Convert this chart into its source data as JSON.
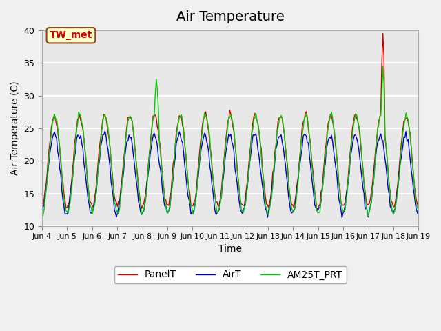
{
  "title": "Air Temperature",
  "xlabel": "Time",
  "ylabel": "Air Temperature (C)",
  "ylim": [
    10,
    40
  ],
  "yticks": [
    10,
    15,
    20,
    25,
    30,
    35,
    40
  ],
  "x_tick_labels": [
    "Jun 4",
    "Jun 5",
    "Jun 6",
    "Jun 7",
    "Jun 8",
    "Jun 9",
    "Jun 10",
    "Jun 11",
    "Jun 12",
    "Jun 13",
    "Jun 14",
    "Jun 15",
    "Jun 16",
    "Jun 17",
    "Jun 18",
    "Jun 19"
  ],
  "annotation_text": "TW_met",
  "annotation_bg": "#ffffcc",
  "annotation_border": "#8b4513",
  "annotation_text_color": "#cc0000",
  "panel_color_hex": "#cc0000",
  "air_color_hex": "#0000cc",
  "am25t_color_hex": "#00cc00",
  "legend_labels": [
    "PanelT",
    "AirT",
    "AM25T_PRT"
  ],
  "bg_color": "#e8e8e8",
  "grid_color": "#ffffff",
  "title_fontsize": 14
}
